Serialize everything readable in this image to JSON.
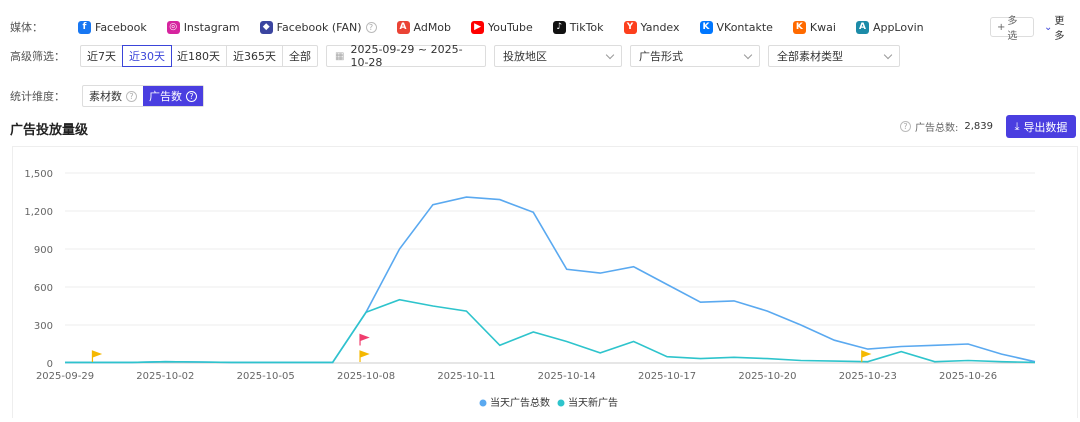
{
  "media": {
    "label": "媒体：",
    "items": [
      {
        "name": "Facebook",
        "icon": "facebook-icon",
        "color": "#1877f2",
        "glyph": "f"
      },
      {
        "name": "Instagram",
        "icon": "instagram-icon",
        "color": "#d6249f",
        "glyph": "◎"
      },
      {
        "name": "Facebook (FAN)",
        "icon": "facebook-fan-icon",
        "color": "#3b45a0",
        "glyph": "◆"
      },
      {
        "name": "AdMob",
        "icon": "admob-icon",
        "color": "#ea4335",
        "glyph": "A"
      },
      {
        "name": "YouTube",
        "icon": "youtube-icon",
        "color": "#ff0000",
        "glyph": "▶"
      },
      {
        "name": "TikTok",
        "icon": "tiktok-icon",
        "color": "#111111",
        "glyph": "♪"
      },
      {
        "name": "Yandex",
        "icon": "yandex-icon",
        "color": "#fc3f1d",
        "glyph": "Y"
      },
      {
        "name": "VKontakte",
        "icon": "vkontakte-icon",
        "color": "#0077ff",
        "glyph": "K"
      },
      {
        "name": "Kwai",
        "icon": "kwai-icon",
        "color": "#ff6a00",
        "glyph": "K"
      },
      {
        "name": "AppLovin",
        "icon": "applovin-icon",
        "color": "#1c8ba8",
        "glyph": "A"
      }
    ],
    "multi_label": "多选",
    "more_label": "更多"
  },
  "filters": {
    "label": "高级筛选：",
    "ranges": [
      "近7天",
      "近30天",
      "近180天",
      "近365天",
      "全部"
    ],
    "active_range": "近30天",
    "date_range": "2025-09-29 ~ 2025-10-28",
    "region_placeholder": "投放地区",
    "format_placeholder": "广告形式",
    "material_type": "全部素材类型"
  },
  "stat": {
    "label": "统计维度：",
    "options": [
      "素材数",
      "广告数"
    ],
    "active": "广告数"
  },
  "section": {
    "title": "广告投放量级",
    "total_label": "广告总数:",
    "total_value": "2,839",
    "export_label": "导出数据"
  },
  "chart_data": {
    "type": "line",
    "x": [
      "2025-09-29",
      "2025-09-30",
      "2025-10-01",
      "2025-10-02",
      "2025-10-03",
      "2025-10-04",
      "2025-10-05",
      "2025-10-06",
      "2025-10-07",
      "2025-10-08",
      "2025-10-09",
      "2025-10-10",
      "2025-10-11",
      "2025-10-12",
      "2025-10-13",
      "2025-10-14",
      "2025-10-15",
      "2025-10-16",
      "2025-10-17",
      "2025-10-18",
      "2025-10-19",
      "2025-10-20",
      "2025-10-21",
      "2025-10-22",
      "2025-10-23",
      "2025-10-24",
      "2025-10-25",
      "2025-10-26",
      "2025-10-27",
      "2025-10-28"
    ],
    "x_ticks": [
      "2025-09-29",
      "2025-10-02",
      "2025-10-05",
      "2025-10-08",
      "2025-10-11",
      "2025-10-14",
      "2025-10-17",
      "2025-10-20",
      "2025-10-23",
      "2025-10-26"
    ],
    "y_ticks": [
      "0",
      "300",
      "600",
      "900",
      "1,200",
      "1,500"
    ],
    "ylim": [
      0,
      1500
    ],
    "series": [
      {
        "name": "当天广告总数",
        "color": "#5aa9f0",
        "values": [
          5,
          5,
          5,
          10,
          8,
          5,
          5,
          5,
          5,
          400,
          900,
          1250,
          1310,
          1290,
          1190,
          740,
          710,
          760,
          620,
          480,
          490,
          410,
          300,
          180,
          110,
          130,
          140,
          150,
          70,
          10
        ]
      },
      {
        "name": "当天新广告",
        "color": "#2ec4cc",
        "values": [
          5,
          5,
          5,
          10,
          8,
          5,
          5,
          5,
          5,
          400,
          500,
          450,
          410,
          140,
          245,
          170,
          80,
          170,
          50,
          35,
          45,
          35,
          20,
          15,
          10,
          90,
          10,
          20,
          10,
          5
        ]
      }
    ],
    "flags": [
      {
        "x": "2025-09-30",
        "value": 0,
        "color": "#f5b800"
      },
      {
        "x": "2025-10-08",
        "value": 0,
        "color": "#f5b800"
      },
      {
        "x": "2025-10-08",
        "value": 130,
        "color": "#f03e6e"
      },
      {
        "x": "2025-10-23",
        "value": 0,
        "color": "#f5b800"
      }
    ],
    "legend_position": "bottom-center",
    "grid": true
  }
}
